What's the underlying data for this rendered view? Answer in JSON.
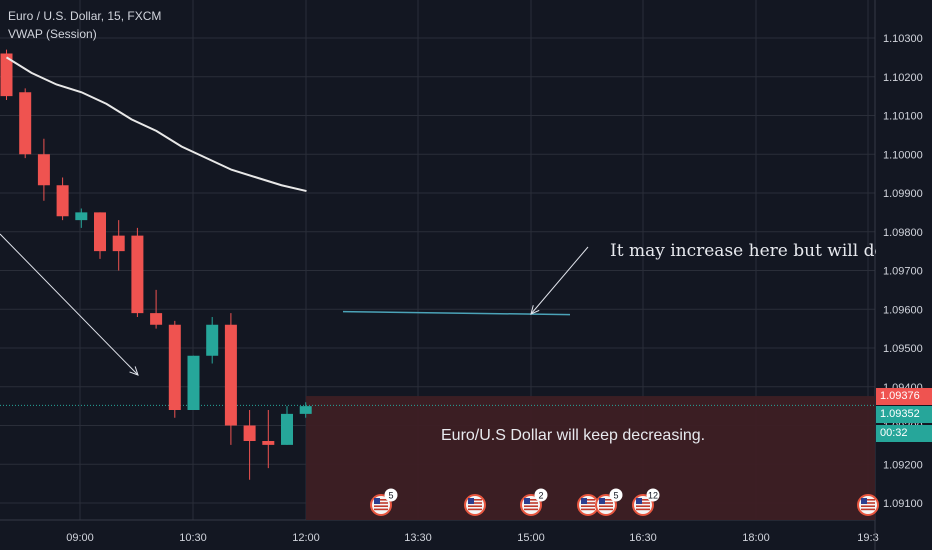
{
  "header": {
    "title": "Euro / U.S. Dollar, 15, FXCM",
    "indicator": "VWAP (Session)"
  },
  "annotations": {
    "arrow_note": "It may increase here but will decre",
    "box_note": "Euro/U.S Dollar will keep decreasing."
  },
  "price_badges": {
    "red_price": "1.09376",
    "green_price": "1.09352",
    "countdown": "00:32"
  },
  "colors": {
    "background": "#131722",
    "grid": "#2a2e39",
    "up": "#26a69a",
    "down": "#ef5350",
    "vwap": "#e8e8e8",
    "projection_box": "#3d1f24",
    "hline": "#4ba3b8"
  },
  "chart_data": {
    "type": "candlestick",
    "symbol": "Euro / U.S. Dollar",
    "interval": "15",
    "source": "FXCM",
    "y_ticks": [
      "1.10300",
      "1.10200",
      "1.10100",
      "1.10000",
      "1.09900",
      "1.09800",
      "1.09700",
      "1.09600",
      "1.09500",
      "1.09400",
      "1.09300",
      "1.09200",
      "1.09100"
    ],
    "x_ticks": [
      "09:00",
      "10:30",
      "12:00",
      "13:30",
      "15:00",
      "16:30",
      "18:00",
      "19:3"
    ],
    "ylim": [
      1.0905,
      1.1035
    ],
    "candles": [
      {
        "o": 1.1026,
        "h": 1.1027,
        "c": 1.1015,
        "l": 1.1014
      },
      {
        "o": 1.1016,
        "h": 1.1017,
        "c": 1.1,
        "l": 1.0999
      },
      {
        "o": 1.1,
        "h": 1.1004,
        "c": 1.0992,
        "l": 1.0988
      },
      {
        "o": 1.0992,
        "h": 1.0994,
        "c": 1.0984,
        "l": 1.0983
      },
      {
        "o": 1.0983,
        "h": 1.0986,
        "c": 1.0985,
        "l": 1.0981
      },
      {
        "o": 1.0985,
        "h": 1.0985,
        "c": 1.0975,
        "l": 1.0973
      },
      {
        "o": 1.0979,
        "h": 1.0983,
        "c": 1.0975,
        "l": 1.097
      },
      {
        "o": 1.0979,
        "h": 1.0981,
        "c": 1.0959,
        "l": 1.0958
      },
      {
        "o": 1.0959,
        "h": 1.0965,
        "c": 1.0956,
        "l": 1.0955
      },
      {
        "o": 1.0956,
        "h": 1.0957,
        "c": 1.0934,
        "l": 1.0932
      },
      {
        "o": 1.0934,
        "h": 1.0948,
        "c": 1.0948,
        "l": 1.0934
      },
      {
        "o": 1.0948,
        "h": 1.0958,
        "c": 1.0956,
        "l": 1.0946
      },
      {
        "o": 1.0956,
        "h": 1.0959,
        "c": 1.093,
        "l": 1.0925
      },
      {
        "o": 1.093,
        "h": 1.0934,
        "c": 1.0926,
        "l": 1.0916
      },
      {
        "o": 1.0926,
        "h": 1.0934,
        "c": 1.0925,
        "l": 1.0919
      },
      {
        "o": 1.0925,
        "h": 1.0935,
        "c": 1.0933,
        "l": 1.0925
      },
      {
        "o": 1.0933,
        "h": 1.0936,
        "c": 1.0935,
        "l": 1.0932
      }
    ],
    "vwap": [
      1.1025,
      1.1021,
      1.1018,
      1.1016,
      1.1013,
      1.1009,
      1.1006,
      1.1002,
      1.0999,
      1.0996,
      1.0994,
      1.0992,
      1.09905
    ],
    "drawings": {
      "horizontal_line": 1.0959,
      "projection_box_top": 1.09376
    },
    "events": [
      "5",
      "",
      "2",
      "5",
      "12",
      ""
    ],
    "grid": true,
    "legend": "top-left"
  }
}
